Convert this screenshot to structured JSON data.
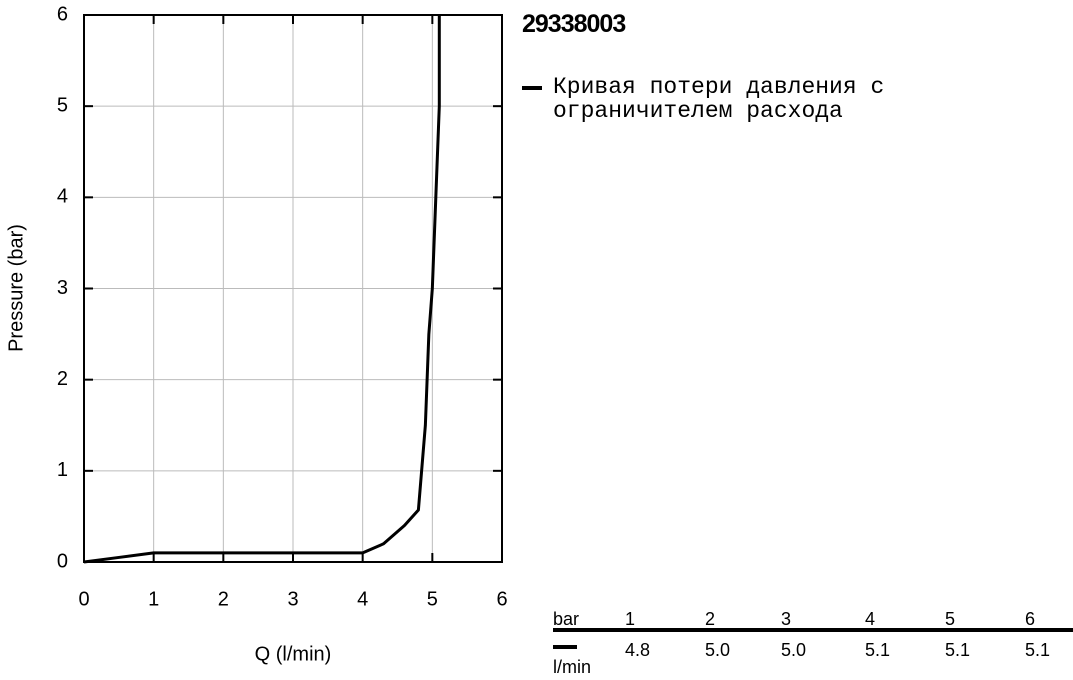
{
  "chart_data": {
    "type": "line",
    "title": "29338003",
    "x_label": "Q (l/min)",
    "y_label": "Pressure (bar)",
    "xlim": [
      0,
      6
    ],
    "xticks": [
      0,
      1,
      2,
      3,
      4,
      5,
      6
    ],
    "ylim": [
      0,
      6
    ],
    "yticks": [
      0,
      1,
      2,
      3,
      4,
      5,
      6
    ],
    "grid": true,
    "series": [
      {
        "name": "Кривая потери давления с ограничителем расхода",
        "color": "#000000",
        "x": [
          0,
          0.5,
          1,
          2,
          3,
          4,
          4.3,
          4.6,
          4.8,
          4.9,
          4.95,
          5.0,
          5.05,
          5.1,
          5.1
        ],
        "values": [
          0,
          0.05,
          0.1,
          0.1,
          0.1,
          0.1,
          0.2,
          0.4,
          0.57,
          1.5,
          2.5,
          3.0,
          4.0,
          5.0,
          6.0
        ]
      }
    ]
  },
  "table": {
    "header": [
      "bar",
      "1",
      "2",
      "3",
      "4",
      "5",
      "6"
    ],
    "row": {
      "unit": "l/min",
      "cells": [
        "4.8",
        "5.0",
        "5.0",
        "5.1",
        "5.1",
        "5.1"
      ]
    }
  }
}
